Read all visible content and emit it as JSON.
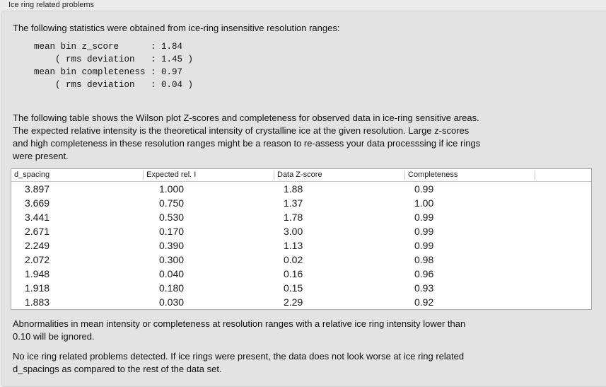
{
  "group_title": "Ice ring related problems",
  "intro": "The following statistics were obtained from ice-ring insensitive resolution ranges:",
  "stats": [
    "mean bin z_score      : 1.84",
    "    ( rms deviation   : 1.45 )",
    "mean bin completeness : 0.97",
    "    ( rms deviation   : 0.04 )"
  ],
  "description": [
    "The following table shows the Wilson plot Z-scores and completeness for observed data in ice-ring sensitive areas.",
    "The expected relative intensity is the theoretical intensity of crystalline ice at the given resolution. Large z-scores",
    "and high completeness in these resolution ranges might be a reason to re-assess your data processsing if ice rings",
    "were present."
  ],
  "table": {
    "columns": [
      "d_spacing",
      "Expected rel. I",
      "Data Z-score",
      "Completeness"
    ],
    "rows": [
      [
        "3.897",
        "1.000",
        "1.88",
        "0.99"
      ],
      [
        "3.669",
        "0.750",
        "1.37",
        "1.00"
      ],
      [
        "3.441",
        "0.530",
        "1.78",
        "0.99"
      ],
      [
        "2.671",
        "0.170",
        "3.00",
        "0.99"
      ],
      [
        "2.249",
        "0.390",
        "1.13",
        "0.99"
      ],
      [
        "2.072",
        "0.300",
        "0.02",
        "0.98"
      ],
      [
        "1.948",
        "0.040",
        "0.16",
        "0.96"
      ],
      [
        "1.918",
        "0.180",
        "0.15",
        "0.93"
      ],
      [
        "1.883",
        "0.030",
        "2.29",
        "0.92"
      ]
    ]
  },
  "note": [
    "Abnormalities in mean intensity or completeness at resolution ranges with a relative ice ring intensity lower than",
    "0.10 will be ignored."
  ],
  "conclusion": [
    "No ice ring related problems detected. If ice rings were present, the data does not look worse at ice ring related",
    "d_spacings as compared to the rest of the data set."
  ]
}
